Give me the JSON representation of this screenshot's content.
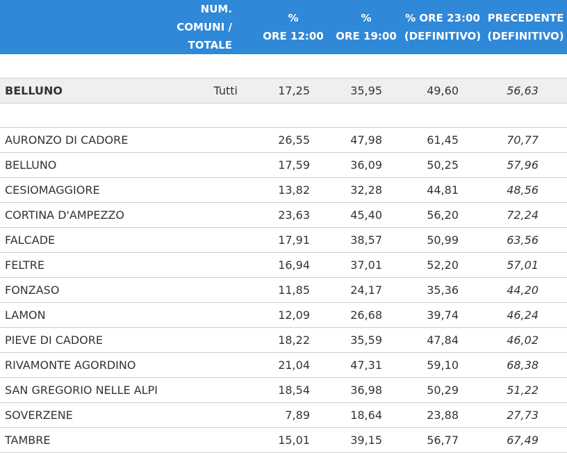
{
  "headers": {
    "name": "",
    "num_line1": "NUM. COMUNI /",
    "num_line2": "TOTALE",
    "h12_line1": "%",
    "h12_line2": "ORE 12:00",
    "h19_line1": "%",
    "h19_line2": "ORE 19:00",
    "h23_line1": "% ORE 23:00",
    "h23_line2": "(DEFINITIVO)",
    "prev_line1": "PRECEDENTE",
    "prev_line2": "(DEFINITIVO)"
  },
  "summary": {
    "name": "BELLUNO",
    "num": "Tutti",
    "v12": "17,25",
    "v19": "35,95",
    "v23": "49,60",
    "prev": "56,63"
  },
  "rows": [
    {
      "name": "AURONZO DI CADORE",
      "num": "",
      "v12": "26,55",
      "v19": "47,98",
      "v23": "61,45",
      "prev": "70,77"
    },
    {
      "name": "BELLUNO",
      "num": "",
      "v12": "17,59",
      "v19": "36,09",
      "v23": "50,25",
      "prev": "57,96"
    },
    {
      "name": "CESIOMAGGIORE",
      "num": "",
      "v12": "13,82",
      "v19": "32,28",
      "v23": "44,81",
      "prev": "48,56"
    },
    {
      "name": "CORTINA D'AMPEZZO",
      "num": "",
      "v12": "23,63",
      "v19": "45,40",
      "v23": "56,20",
      "prev": "72,24"
    },
    {
      "name": "FALCADE",
      "num": "",
      "v12": "17,91",
      "v19": "38,57",
      "v23": "50,99",
      "prev": "63,56"
    },
    {
      "name": "FELTRE",
      "num": "",
      "v12": "16,94",
      "v19": "37,01",
      "v23": "52,20",
      "prev": "57,01"
    },
    {
      "name": "FONZASO",
      "num": "",
      "v12": "11,85",
      "v19": "24,17",
      "v23": "35,36",
      "prev": "44,20"
    },
    {
      "name": "LAMON",
      "num": "",
      "v12": "12,09",
      "v19": "26,68",
      "v23": "39,74",
      "prev": "46,24"
    },
    {
      "name": "PIEVE DI CADORE",
      "num": "",
      "v12": "18,22",
      "v19": "35,59",
      "v23": "47,84",
      "prev": "46,02"
    },
    {
      "name": "RIVAMONTE AGORDINO",
      "num": "",
      "v12": "21,04",
      "v19": "47,31",
      "v23": "59,10",
      "prev": "68,38"
    },
    {
      "name": "SAN GREGORIO NELLE ALPI",
      "num": "",
      "v12": "18,54",
      "v19": "36,98",
      "v23": "50,29",
      "prev": "51,22"
    },
    {
      "name": "SOVERZENE",
      "num": "",
      "v12": "7,89",
      "v19": "18,64",
      "v23": "23,88",
      "prev": "27,73"
    },
    {
      "name": "TAMBRE",
      "num": "",
      "v12": "15,01",
      "v19": "39,15",
      "v23": "56,77",
      "prev": "67,49"
    }
  ],
  "colors": {
    "header_bg": "#2f88d8",
    "header_text": "#ffffff",
    "summary_bg": "#efefef",
    "row_border": "#cfcfcf"
  }
}
